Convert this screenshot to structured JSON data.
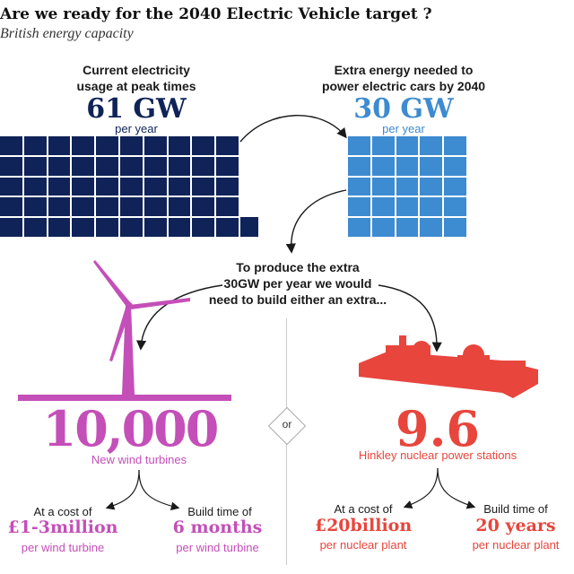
{
  "header": {
    "title": "Are we ready for the 2040 Electric Vehicle target ?",
    "subtitle": "British energy capacity"
  },
  "current": {
    "label_line1": "Current electricity",
    "label_line2": "usage at peak times",
    "value": "61 GW",
    "unit": "per year",
    "value_gw": 61
  },
  "extra": {
    "label_line1": "Extra energy needed to",
    "label_line2": "power electric cars by 2040",
    "value": "30 GW",
    "unit": "per year",
    "value_gw": 30
  },
  "produce": {
    "line1": "To produce the extra",
    "line2": "30GW per year we would",
    "line3": "need to build either an extra..."
  },
  "separator": "or",
  "wind": {
    "value": "10,000",
    "label": "New wind turbines",
    "cost_label": "At a cost of",
    "cost_value": "£1-3million",
    "cost_unit": "per wind turbine",
    "time_label": "Build time of",
    "time_value": "6 months",
    "time_unit": "per wind turbine"
  },
  "nuclear": {
    "value": "9.6",
    "label": "Hinkley nuclear power stations",
    "cost_label": "At a cost of",
    "cost_value": "£20billion",
    "cost_unit": "per nuclear plant",
    "time_label": "Build time of",
    "time_value": "20 years",
    "time_unit": "per nuclear plant"
  },
  "colors": {
    "navy": "#0f2358",
    "blue": "#3d8bd0",
    "magenta": "#c44fb8",
    "red": "#e8453c"
  },
  "icons": [
    "wind-turbine-icon",
    "nuclear-plant-icon",
    "curved-arrow-icon"
  ]
}
